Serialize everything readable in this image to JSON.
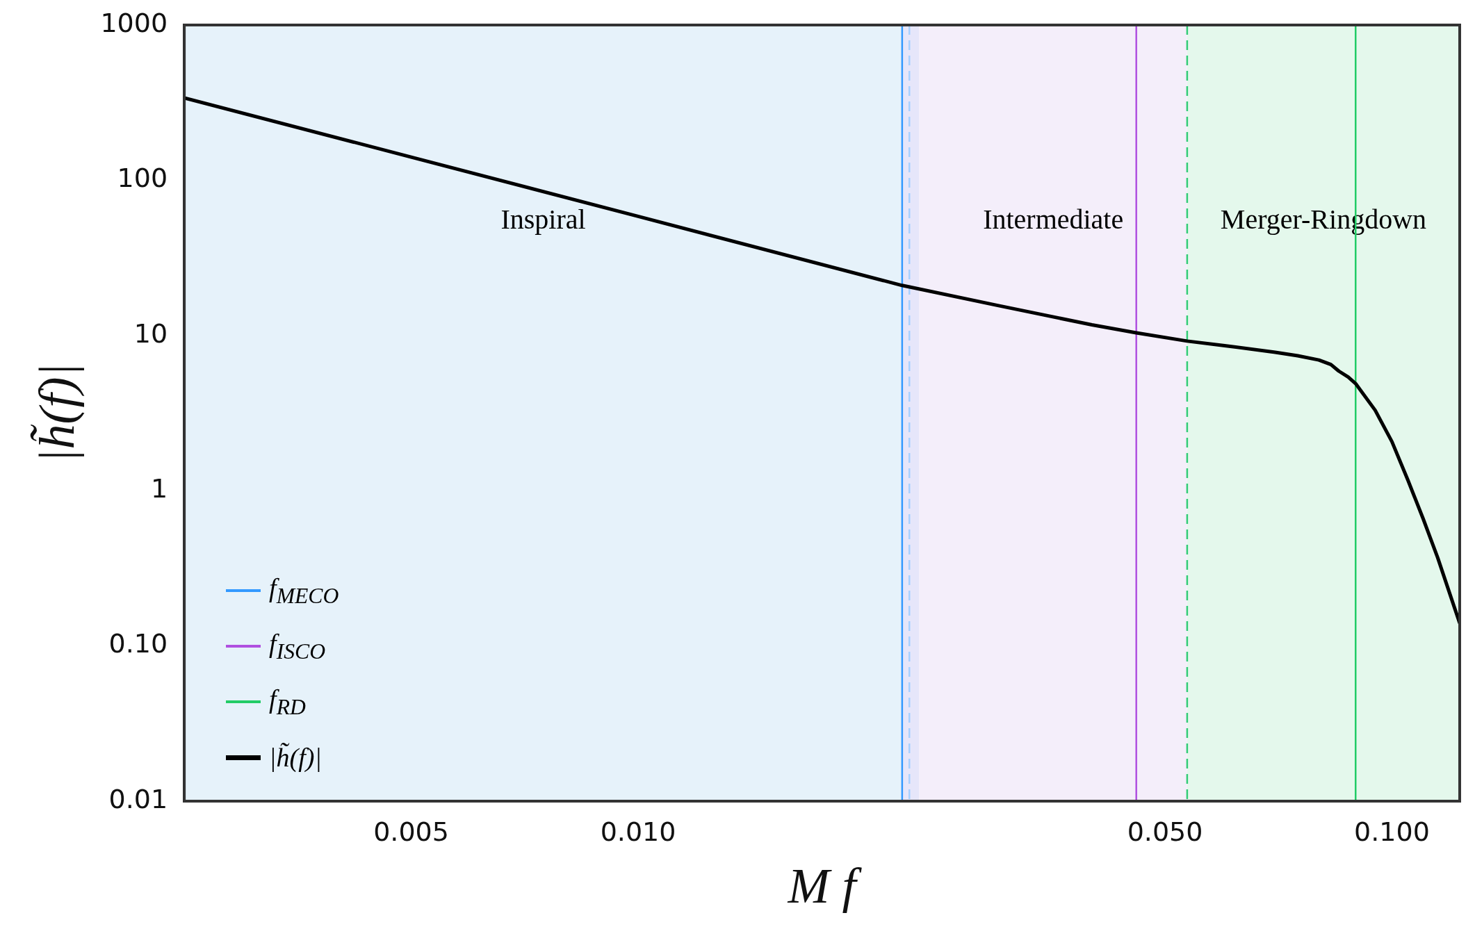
{
  "chart_data": {
    "type": "line",
    "xlabel": "M f",
    "ylabel": "|h̃(f)|",
    "log": "xy",
    "grid": false,
    "legend": "bottom left",
    "xlim": [
      0.0025,
      0.123
    ],
    "ylim": [
      0.01,
      1000
    ],
    "xticks": [
      0.005,
      {
        "value": 0.01,
        "label": "0.010"
      },
      {
        "value": 0.05,
        "label": "0.050"
      },
      {
        "value": 0.1,
        "label": "0.100"
      }
    ],
    "yticks": [
      0.01,
      {
        "value": 0.1,
        "label": "0.10"
      },
      1,
      10,
      100,
      1000
    ],
    "bands": [
      {
        "axis": "x",
        "from": 0.0025,
        "to": 0.0224,
        "label": "Inspiral",
        "color": "#e6f2fa"
      },
      {
        "axis": "x",
        "from": 0.0224,
        "to": 0.0236,
        "color": "#e6e6fa"
      },
      {
        "axis": "x",
        "from": 0.0236,
        "to": 0.0535,
        "label": "Intermediate",
        "color": "#f4eefa"
      },
      {
        "axis": "x",
        "from": 0.0535,
        "to": 0.123,
        "label": "Merger-Ringdown",
        "color": "#e4f8ec"
      }
    ],
    "ref_lines": [
      {
        "axis": "x",
        "value": 0.0229,
        "color": "#a8d0ff",
        "line_style": "dashed"
      },
      {
        "axis": "x",
        "value": 0.0535,
        "color": "#33cc77",
        "line_style": "dashed"
      }
    ],
    "series": [
      {
        "name": "f$_{MECO}$",
        "color": "#3399ff",
        "x": [
          0.0224,
          0.0224
        ],
        "values": [
          0.01,
          1000
        ]
      },
      {
        "name": "f$_{ISCO}$",
        "color": "#b050e0",
        "x": [
          0.0458,
          0.0458
        ],
        "values": [
          0.01,
          1000
        ]
      },
      {
        "name": "f$_{RD}$",
        "color": "#22cc66",
        "x": [
          0.0895,
          0.0895
        ],
        "values": [
          0.01,
          1000
        ]
      },
      {
        "name": "|h̃(f)|",
        "color": "#000000",
        "x": [
          0.0025,
          0.005,
          0.01,
          0.0224,
          0.03,
          0.04,
          0.0458,
          0.0535,
          0.06,
          0.07,
          0.075,
          0.08,
          0.083,
          0.085,
          0.0875,
          0.0895,
          0.095,
          0.1,
          0.105,
          0.11,
          0.115,
          0.123
        ],
        "values": [
          339,
          141,
          58.5,
          21,
          15.6,
          11.7,
          10.4,
          9.2,
          8.6,
          7.8,
          7.4,
          6.95,
          6.5,
          5.9,
          5.4,
          4.9,
          3.3,
          2.07,
          1.17,
          0.66,
          0.37,
          0.14
        ]
      }
    ]
  }
}
